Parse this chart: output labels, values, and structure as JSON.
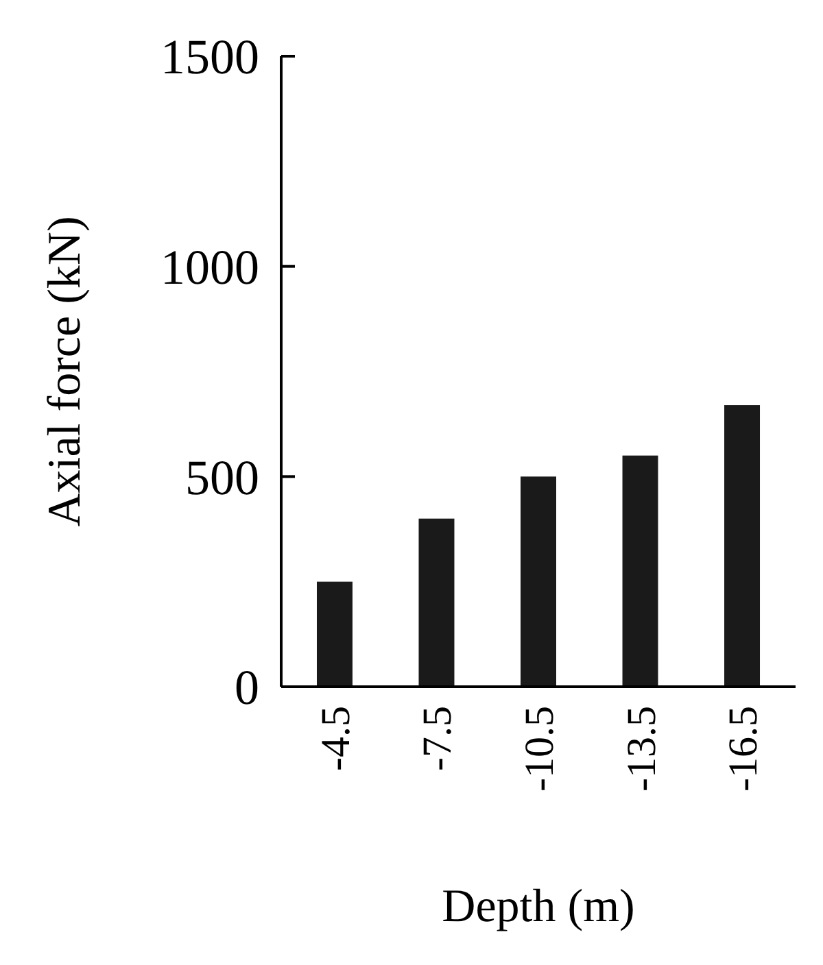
{
  "chart_data": {
    "type": "bar",
    "xlabel": "Depth (m)",
    "ylabel": "Axial force (kN)",
    "categories": [
      "-4.5",
      "-7.5",
      "-10.5",
      "-13.5",
      "-16.5"
    ],
    "values": [
      250,
      400,
      500,
      550,
      670
    ],
    "color": "#1a1a1a",
    "ylim": [
      0,
      1500
    ],
    "yticks": [
      0,
      500,
      1000,
      1500
    ]
  }
}
